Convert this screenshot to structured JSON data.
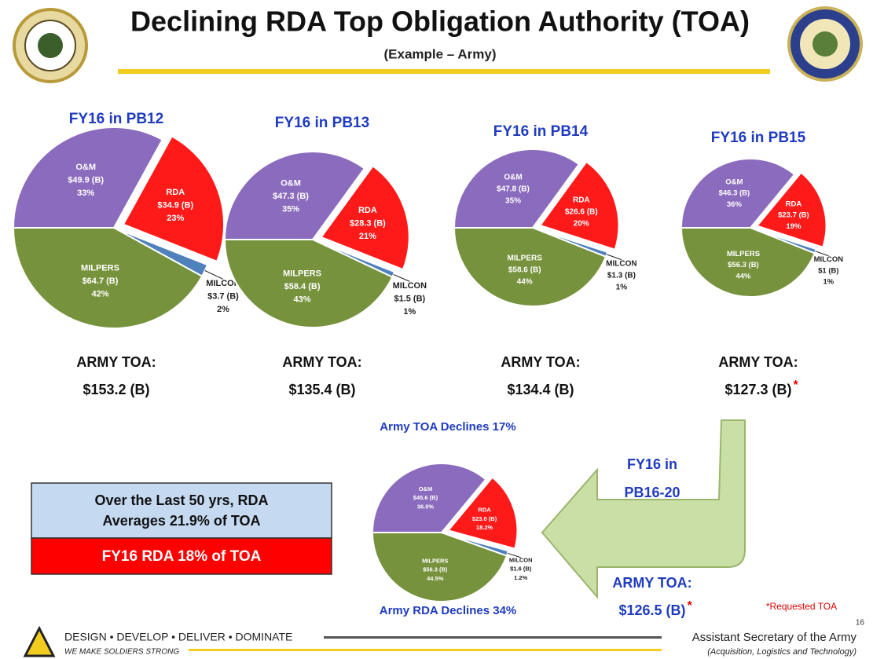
{
  "header": {
    "title": "Declining RDA Top Obligation Authority (TOA)",
    "subtitle": "(Example – Army)"
  },
  "chart_data": [
    {
      "type": "pie",
      "title": "FY16 in PB12",
      "categories": [
        "O&M",
        "RDA",
        "MILCON",
        "MILPERS"
      ],
      "values": [
        33,
        23,
        2,
        42
      ],
      "value_labels": [
        "33%",
        "23%",
        "2%",
        "42%"
      ],
      "amounts": [
        49.9,
        34.9,
        3.7,
        64.7
      ],
      "amount_labels": [
        "$49.9 (B)",
        "$34.9 (B)",
        "$3.7 (B)",
        "$64.7 (B)"
      ],
      "colors": [
        "#8b6bbd",
        "#ff1a1a",
        "#4f81bd",
        "#76923c"
      ],
      "toa_label": "ARMY TOA:",
      "toa": "$153.2 (B)"
    },
    {
      "type": "pie",
      "title": "FY16 in PB13",
      "categories": [
        "O&M",
        "RDA",
        "MILCON",
        "MILPERS"
      ],
      "values": [
        35,
        21,
        1,
        43
      ],
      "value_labels": [
        "35%",
        "21%",
        "1%",
        "43%"
      ],
      "amounts": [
        47.3,
        28.3,
        1.5,
        58.4
      ],
      "amount_labels": [
        "$47.3 (B)",
        "$28.3 (B)",
        "$1.5 (B)",
        "$58.4 (B)"
      ],
      "colors": [
        "#8b6bbd",
        "#ff1a1a",
        "#4f81bd",
        "#76923c"
      ],
      "toa_label": "ARMY TOA:",
      "toa": "$135.4 (B)"
    },
    {
      "type": "pie",
      "title": "FY16 in PB14",
      "categories": [
        "O&M",
        "RDA",
        "MILCON",
        "MILPERS"
      ],
      "values": [
        35,
        20,
        1,
        44
      ],
      "value_labels": [
        "35%",
        "20%",
        "1%",
        "44%"
      ],
      "amounts": [
        47.8,
        26.6,
        1.3,
        58.6
      ],
      "amount_labels": [
        "$47.8 (B)",
        "$26.6 (B)",
        "$1.3 (B)",
        "$58.6 (B)"
      ],
      "colors": [
        "#8b6bbd",
        "#ff1a1a",
        "#4f81bd",
        "#76923c"
      ],
      "toa_label": "ARMY TOA:",
      "toa": "$134.4 (B)"
    },
    {
      "type": "pie",
      "title": "FY16 in PB15",
      "categories": [
        "O&M",
        "RDA",
        "MILCON",
        "MILPERS"
      ],
      "values": [
        36,
        19,
        1,
        44
      ],
      "value_labels": [
        "36%",
        "19%",
        "1%",
        "44%"
      ],
      "amounts": [
        46.3,
        23.7,
        1,
        56.3
      ],
      "amount_labels": [
        "$46.3 (B)",
        "$23.7 (B)",
        "$1 (B)",
        "$56.3 (B)"
      ],
      "colors": [
        "#8b6bbd",
        "#ff1a1a",
        "#4f81bd",
        "#76923c"
      ],
      "toa_label": "ARMY TOA:",
      "toa": "$127.3 (B)",
      "toa_mark": "*"
    },
    {
      "type": "pie",
      "title": "Army TOA Declines 17%",
      "note": "Army RDA Declines 34%",
      "categories": [
        "O&M",
        "RDA",
        "MILCON",
        "MILPERS"
      ],
      "values": [
        36.0,
        18.2,
        1.2,
        44.5
      ],
      "value_labels": [
        "36.0%",
        "18.2%",
        "1.2%",
        "44.5%"
      ],
      "amounts": [
        45.6,
        23.0,
        1.6,
        56.3
      ],
      "amount_labels": [
        "$45.6 (B)",
        "$23.0 (B)",
        "$1.6 (B)",
        "$56.3 (B)"
      ],
      "colors": [
        "#8b6bbd",
        "#ff1a1a",
        "#4f81bd",
        "#76923c"
      ],
      "toa_label": "ARMY TOA:",
      "toa": "$126.5 (B)",
      "toa_mark": "*"
    }
  ],
  "callout": {
    "average": "Over the Last 50 yrs, RDA Averages 21.9% of TOA",
    "current": "FY16 RDA 18% of TOA"
  },
  "arrow_label": "FY16 in PB16-20",
  "footnote": "*Requested TOA",
  "page_number": "16",
  "footer": {
    "motto": "DESIGN • DEVELOP • DELIVER • DOMINATE",
    "tagline": "WE MAKE SOLDIERS STRONG",
    "office": "Assistant Secretary of the Army",
    "office_detail": "(Acquisition, Logistics and Technology)"
  }
}
